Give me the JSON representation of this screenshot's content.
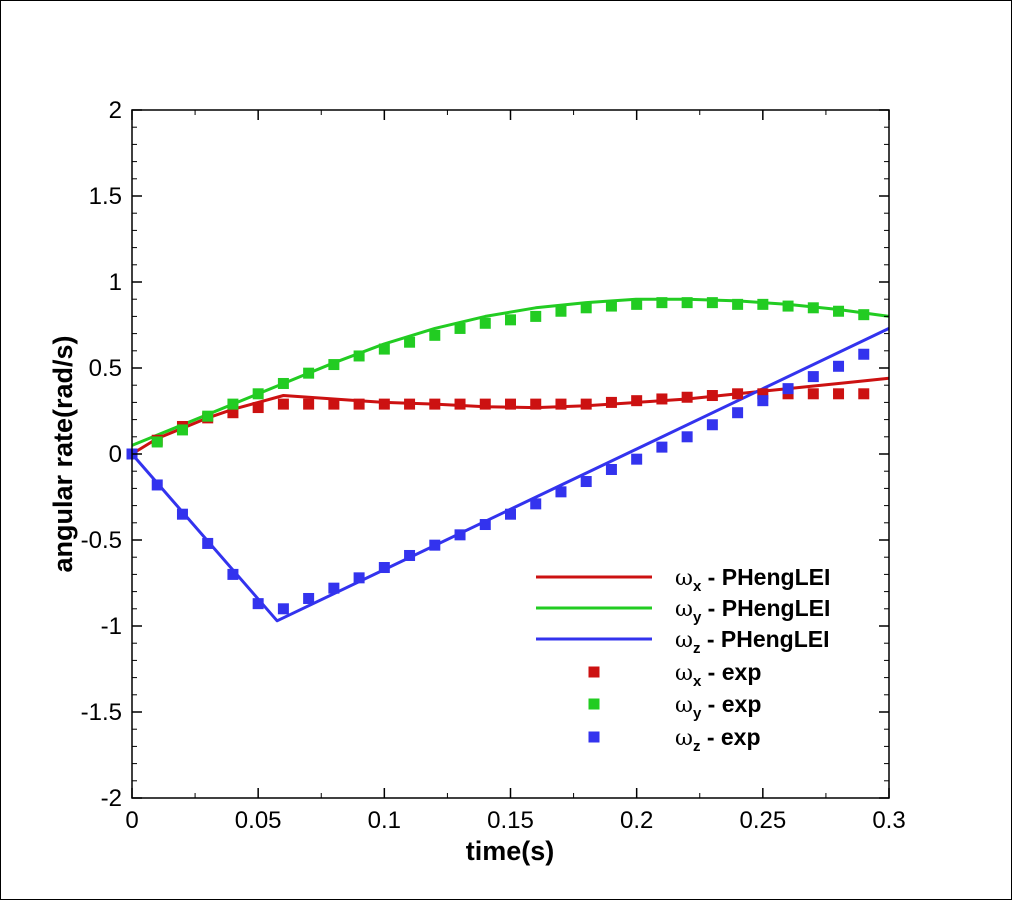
{
  "chart_data": {
    "type": "line",
    "title": "",
    "xlabel": "time(s)",
    "ylabel": "angular rate(rad/s)",
    "xlim": [
      0,
      0.3
    ],
    "ylim": [
      -2,
      2
    ],
    "x_ticks": [
      0,
      0.05,
      0.1,
      0.15,
      0.2,
      0.25,
      0.3
    ],
    "x_tick_labels": [
      "0",
      "0.05",
      "0.1",
      "0.15",
      "0.2",
      "0.25",
      "0.3"
    ],
    "y_ticks": [
      -2,
      -1.5,
      -1,
      -0.5,
      0,
      0.5,
      1,
      1.5,
      2
    ],
    "y_tick_labels": [
      "-2",
      "-1.5",
      "-1",
      "-0.5",
      "0",
      "0.5",
      "1",
      "1.5",
      "2"
    ],
    "grid": false,
    "legend_position": "bottom-right",
    "series": [
      {
        "name": "ωx - PHengLEI",
        "symbol": "ω",
        "subscript": "x",
        "suffix": " - PHengLEI",
        "kind": "line",
        "color": "#cc1111",
        "x": [
          0,
          0.01,
          0.02,
          0.03,
          0.04,
          0.05,
          0.06,
          0.07,
          0.08,
          0.09,
          0.1,
          0.12,
          0.14,
          0.16,
          0.18,
          0.2,
          0.22,
          0.24,
          0.26,
          0.28,
          0.3
        ],
        "y": [
          0,
          0.09,
          0.15,
          0.21,
          0.26,
          0.3,
          0.34,
          0.33,
          0.32,
          0.31,
          0.3,
          0.29,
          0.275,
          0.27,
          0.28,
          0.3,
          0.32,
          0.35,
          0.38,
          0.41,
          0.44
        ]
      },
      {
        "name": "ωy - PHengLEI",
        "symbol": "ω",
        "subscript": "y",
        "suffix": " - PHengLEI",
        "kind": "line",
        "color": "#22cc22",
        "x": [
          0,
          0.02,
          0.04,
          0.06,
          0.08,
          0.1,
          0.12,
          0.14,
          0.16,
          0.18,
          0.2,
          0.21,
          0.22,
          0.24,
          0.26,
          0.28,
          0.3
        ],
        "y": [
          0.05,
          0.17,
          0.29,
          0.41,
          0.53,
          0.64,
          0.73,
          0.8,
          0.85,
          0.88,
          0.9,
          0.9,
          0.9,
          0.89,
          0.87,
          0.84,
          0.8
        ]
      },
      {
        "name": "ωz - PHengLEI",
        "symbol": "ω",
        "subscript": "z",
        "suffix": " - PHengLEI",
        "kind": "line",
        "color": "#3333ee",
        "x": [
          0,
          0.0575,
          0.3
        ],
        "y": [
          0,
          -0.97,
          0.73
        ]
      },
      {
        "name": "ωx - exp",
        "symbol": "ω",
        "subscript": "x",
        "suffix": " - exp",
        "kind": "scatter",
        "color": "#cc1111",
        "x": [
          0,
          0.01,
          0.02,
          0.03,
          0.04,
          0.05,
          0.06,
          0.07,
          0.08,
          0.09,
          0.1,
          0.11,
          0.12,
          0.13,
          0.14,
          0.15,
          0.16,
          0.17,
          0.18,
          0.19,
          0.2,
          0.21,
          0.22,
          0.23,
          0.24,
          0.25,
          0.26,
          0.27,
          0.28,
          0.29
        ],
        "y": [
          0,
          0.08,
          0.16,
          0.21,
          0.24,
          0.27,
          0.29,
          0.29,
          0.29,
          0.29,
          0.29,
          0.29,
          0.29,
          0.29,
          0.29,
          0.29,
          0.29,
          0.29,
          0.29,
          0.3,
          0.31,
          0.32,
          0.33,
          0.34,
          0.35,
          0.35,
          0.35,
          0.35,
          0.35,
          0.35
        ]
      },
      {
        "name": "ωy - exp",
        "symbol": "ω",
        "subscript": "y",
        "suffix": " - exp",
        "kind": "scatter",
        "color": "#22cc22",
        "x": [
          0,
          0.01,
          0.02,
          0.03,
          0.04,
          0.05,
          0.06,
          0.07,
          0.08,
          0.09,
          0.1,
          0.11,
          0.12,
          0.13,
          0.14,
          0.15,
          0.16,
          0.17,
          0.18,
          0.19,
          0.2,
          0.21,
          0.22,
          0.23,
          0.24,
          0.25,
          0.26,
          0.27,
          0.28,
          0.29
        ],
        "y": [
          0,
          0.07,
          0.14,
          0.22,
          0.29,
          0.35,
          0.41,
          0.47,
          0.52,
          0.57,
          0.61,
          0.65,
          0.69,
          0.73,
          0.76,
          0.78,
          0.8,
          0.83,
          0.85,
          0.86,
          0.87,
          0.88,
          0.88,
          0.88,
          0.87,
          0.87,
          0.86,
          0.85,
          0.83,
          0.81
        ]
      },
      {
        "name": "ωz - exp",
        "symbol": "ω",
        "subscript": "z",
        "suffix": " - exp",
        "kind": "scatter",
        "color": "#3333ee",
        "x": [
          0,
          0.01,
          0.02,
          0.03,
          0.04,
          0.05,
          0.06,
          0.07,
          0.08,
          0.09,
          0.1,
          0.11,
          0.12,
          0.13,
          0.14,
          0.15,
          0.16,
          0.17,
          0.18,
          0.19,
          0.2,
          0.21,
          0.22,
          0.23,
          0.24,
          0.25,
          0.26,
          0.27,
          0.28,
          0.29
        ],
        "y": [
          0,
          -0.18,
          -0.35,
          -0.52,
          -0.7,
          -0.87,
          -0.9,
          -0.84,
          -0.78,
          -0.72,
          -0.66,
          -0.59,
          -0.53,
          -0.47,
          -0.41,
          -0.35,
          -0.29,
          -0.22,
          -0.16,
          -0.09,
          -0.03,
          0.04,
          0.1,
          0.17,
          0.24,
          0.31,
          0.38,
          0.45,
          0.51,
          0.58
        ]
      }
    ]
  }
}
